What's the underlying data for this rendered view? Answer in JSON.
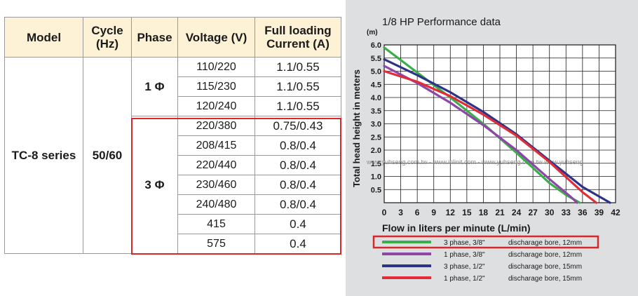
{
  "table": {
    "headers": [
      "Model",
      "Cycle (Hz)",
      "Phase",
      "Voltage (V)",
      "Full loading Current (A)"
    ],
    "model": "TC-8 series",
    "cycle": "50/60",
    "phase_single": "1 Φ",
    "phase_three": "3 Φ",
    "rows": [
      {
        "voltage": "110/220",
        "current": "1.1/0.55"
      },
      {
        "voltage": "115/230",
        "current": "1.1/0.55"
      },
      {
        "voltage": "120/240",
        "current": "1.1/0.55"
      },
      {
        "voltage": "220/380",
        "current": "0.75/0.43"
      },
      {
        "voltage": "208/415",
        "current": "0.8/0.4"
      },
      {
        "voltage": "220/440",
        "current": "0.8/0.4"
      },
      {
        "voltage": "230/460",
        "current": "0.8/0.4"
      },
      {
        "voltage": "240/480",
        "current": "0.8/0.4"
      },
      {
        "voltage": "415",
        "current": "0.4"
      },
      {
        "voltage": "575",
        "current": "0.4"
      }
    ]
  },
  "colors": {
    "header_bg": "#fdf2d5",
    "highlight": "#d8282b",
    "chart_panel_bg": "#dedfe0"
  },
  "chart_data": {
    "type": "line",
    "title": "1/8 HP Performance data",
    "y_unit": "(m)",
    "xlabel": "Flow in liters per minute (L/min)",
    "ylabel": "Total head height in meters",
    "xlim": [
      0,
      42
    ],
    "ylim": [
      0,
      6.0
    ],
    "x_ticks": [
      0,
      3,
      6,
      9,
      12,
      15,
      18,
      21,
      24,
      27,
      30,
      33,
      36,
      39,
      42
    ],
    "x_tick_labels": [
      "0",
      "3",
      "6",
      "9",
      "12",
      "15",
      "18",
      "21",
      "24",
      "27",
      "30",
      "33",
      "36",
      "39",
      "42"
    ],
    "y_ticks": [
      0.5,
      1.0,
      1.5,
      2.0,
      2.5,
      3.0,
      3.5,
      4.0,
      4.5,
      5.0,
      5.5,
      6.0
    ],
    "y_tick_labels": [
      "0.5",
      "1.0",
      "1.5",
      "2.0",
      "2.5",
      "3.0",
      "3.5",
      "4.0",
      "4.5",
      "5.0",
      "5.5",
      "6.0"
    ],
    "grid": true,
    "series": [
      {
        "name": "3 phase, 3/8\"",
        "desc": "discharage bore, 12mm",
        "color": "#3aae49",
        "x": [
          0,
          6,
          12,
          18,
          24,
          30,
          33,
          35.5
        ],
        "y": [
          5.9,
          4.95,
          4.0,
          3.0,
          1.9,
          0.75,
          0.3,
          0
        ]
      },
      {
        "name": "1 phase, 3/8\"",
        "desc": "discharage bore, 12mm",
        "color": "#8e45a8",
        "x": [
          0,
          6,
          12,
          18,
          24,
          30,
          34,
          35
        ],
        "y": [
          5.2,
          4.55,
          3.8,
          2.95,
          2.0,
          0.9,
          0.2,
          0
        ]
      },
      {
        "name": "3 phase, 1/2\"",
        "desc": "discharage bore, 15mm",
        "color": "#2d3387",
        "x": [
          0,
          6,
          12,
          18,
          24,
          30,
          36,
          41
        ],
        "y": [
          5.45,
          4.85,
          4.2,
          3.45,
          2.6,
          1.6,
          0.6,
          0
        ]
      },
      {
        "name": "1 phase, 1/2\"",
        "desc": "discharage bore, 15mm",
        "color": "#e02d39",
        "x": [
          0,
          6,
          12,
          18,
          24,
          30,
          36,
          38.5
        ],
        "y": [
          5.0,
          4.6,
          4.05,
          3.35,
          2.55,
          1.55,
          0.4,
          0
        ]
      }
    ]
  },
  "watermark": "www.yuhseng.com.tw - www.inlinit.com - www.yuhseng.com.tw www.yuhseng"
}
